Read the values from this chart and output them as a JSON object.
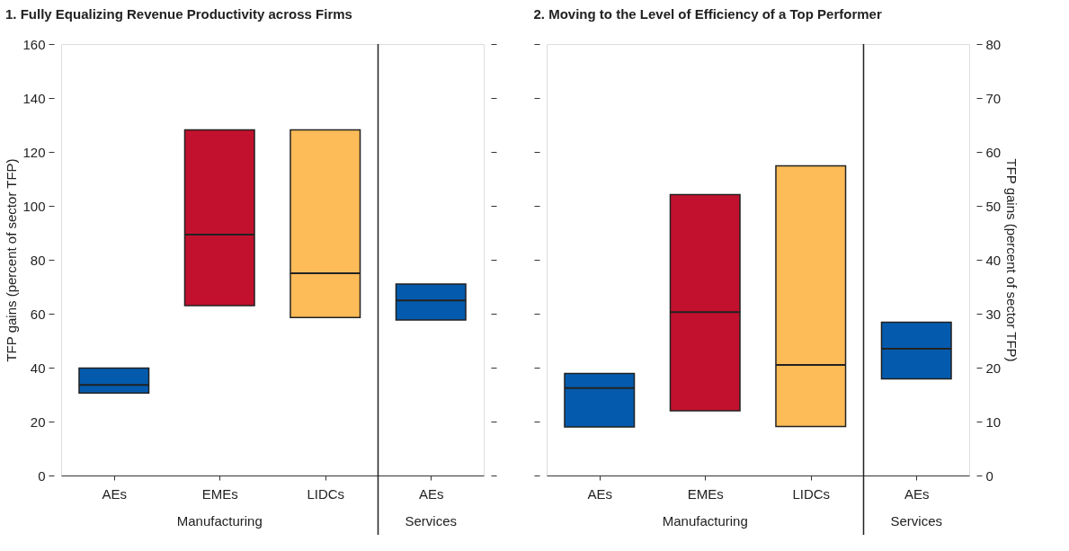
{
  "chart_data": [
    {
      "type": "box",
      "title": "1. Fully Equalizing Revenue Productivity across Firms",
      "ylabel": "TFP gains (percent of sector TFP)",
      "categories": [
        "AEs",
        "EMEs",
        "LIDCs",
        "AEs"
      ],
      "colors": [
        "#045bad",
        "#c2112e",
        "#fdbc58",
        "#045bad"
      ],
      "boxes": [
        {
          "low": 30.6,
          "q1": 30.6,
          "median": 33.6,
          "q3": 39.8,
          "high": 39.8
        },
        {
          "low": 63.0,
          "q1": 63.0,
          "median": 89.3,
          "q3": 128.2,
          "high": 128.2
        },
        {
          "low": 58.6,
          "q1": 58.6,
          "median": 75.0,
          "q3": 128.2,
          "high": 128.2
        },
        {
          "low": 57.7,
          "q1": 57.7,
          "median": 64.9,
          "q3": 71.0,
          "high": 71.0
        }
      ],
      "ylim": [
        0,
        160
      ],
      "yticks": [
        0,
        20,
        40,
        60,
        80,
        100,
        120,
        140,
        160
      ],
      "annotations": [
        "Manufacturing",
        "Services"
      ],
      "grid": false
    },
    {
      "type": "box",
      "title": "2. Moving to the Level of Efficiency of a Top Performer",
      "y2label": "TFP gains (percent of sector TFP)",
      "categories": [
        "AEs",
        "EMEs",
        "LIDCs",
        "AEs"
      ],
      "colors": [
        "#045bad",
        "#c2112e",
        "#fdbc58",
        "#045bad"
      ],
      "series": [
        {
          "axis": "y2",
          "boxes": [
            {
              "low": 9.0,
              "q1": 9.0,
              "median": 16.2,
              "q3": 18.9,
              "high": 18.9
            },
            {
              "low": 12.0,
              "q1": 12.0,
              "median": 30.3,
              "q3": 52.1,
              "high": 52.1
            },
            {
              "low": 9.1,
              "q1": 9.1,
              "median": 20.5,
              "q3": 57.4,
              "high": 57.4
            },
            {
              "low": 17.9,
              "q1": 17.9,
              "median": 23.5,
              "q3": 28.4,
              "high": 28.4
            }
          ]
        }
      ],
      "y2lim": [
        0,
        80
      ],
      "y2ticks": [
        0,
        10,
        20,
        30,
        40,
        50,
        60,
        70,
        80
      ],
      "annotations": [
        "Manufacturing",
        "Services"
      ],
      "grid": false
    }
  ]
}
